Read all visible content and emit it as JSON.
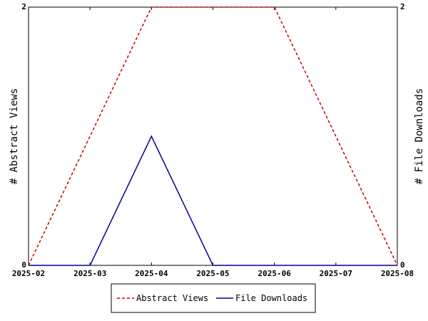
{
  "chart_data": {
    "type": "line",
    "x": [
      "2025-02",
      "2025-03",
      "2025-04",
      "2025-05",
      "2025-06",
      "2025-07",
      "2025-08"
    ],
    "series": [
      {
        "name": "Abstract Views",
        "values": [
          0,
          1,
          2,
          2,
          2,
          1,
          0
        ],
        "axis": "left",
        "color": "#cc0000",
        "style": "dashed"
      },
      {
        "name": "File Downloads",
        "values": [
          0,
          0,
          1,
          0,
          0,
          0,
          0
        ],
        "axis": "right",
        "color": "#000099",
        "style": "solid"
      }
    ],
    "ylabel": "# Abstract Views",
    "y2label": "# File Downloads",
    "ylim": [
      0,
      2
    ],
    "y2lim": [
      0,
      2
    ],
    "yticks": [
      "0",
      "2"
    ],
    "y2ticks": [
      "0",
      "2"
    ],
    "grid": false,
    "legend_position": "bottom-center"
  }
}
